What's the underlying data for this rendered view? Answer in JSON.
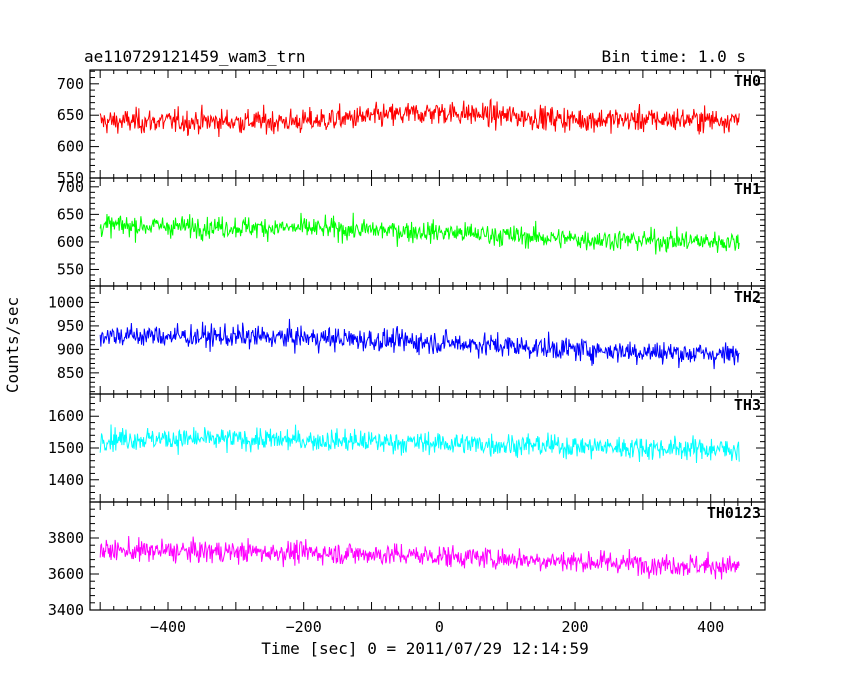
{
  "header": {
    "title": "ae110729121459_wam3_trn",
    "bin_time": "Bin time: 1.0 s"
  },
  "chart_data": {
    "type": "line",
    "ylabel": "Counts/sec",
    "xlabel": "Time [sec] 0 = 2011/07/29 12:14:59",
    "xlim": [
      -515,
      480
    ],
    "x_range": [
      -500,
      442
    ],
    "x_ticks": [
      -400,
      -200,
      0,
      200,
      400
    ],
    "grid": false,
    "panels": [
      {
        "name": "TH0",
        "color": "#ff0000",
        "ylim": [
          550,
          722
        ],
        "yticks": [
          550,
          600,
          650,
          700
        ],
        "mean_trend": [
          [
            -500,
            640
          ],
          [
            -200,
            640
          ],
          [
            0,
            655
          ],
          [
            200,
            643
          ],
          [
            442,
            643
          ]
        ],
        "noise_sd": 22
      },
      {
        "name": "TH1",
        "color": "#00ff00",
        "ylim": [
          520,
          716
        ],
        "yticks": [
          550,
          600,
          650,
          700
        ],
        "mean_trend": [
          [
            -500,
            630
          ],
          [
            -200,
            625
          ],
          [
            0,
            618
          ],
          [
            200,
            605
          ],
          [
            442,
            600
          ]
        ],
        "noise_sd": 22
      },
      {
        "name": "TH2",
        "color": "#0000ff",
        "ylim": [
          805,
          1035
        ],
        "yticks": [
          850,
          900,
          950,
          1000
        ],
        "mean_trend": [
          [
            -500,
            930
          ],
          [
            -200,
            925
          ],
          [
            0,
            915
          ],
          [
            200,
            900
          ],
          [
            442,
            888
          ]
        ],
        "noise_sd": 28
      },
      {
        "name": "TH3",
        "color": "#00ffff",
        "ylim": [
          1330,
          1670
        ],
        "yticks": [
          1400,
          1500,
          1600
        ],
        "mean_trend": [
          [
            -500,
            1530
          ],
          [
            -200,
            1525
          ],
          [
            0,
            1515
          ],
          [
            200,
            1505
          ],
          [
            442,
            1495
          ]
        ],
        "noise_sd": 40
      },
      {
        "name": "TH0123",
        "color": "#ff00ff",
        "ylim": [
          3400,
          4000
        ],
        "yticks": [
          3400,
          3600,
          3800
        ],
        "mean_trend": [
          [
            -500,
            3730
          ],
          [
            -200,
            3720
          ],
          [
            0,
            3700
          ],
          [
            200,
            3670
          ],
          [
            442,
            3640
          ]
        ],
        "noise_sd": 70
      }
    ]
  }
}
